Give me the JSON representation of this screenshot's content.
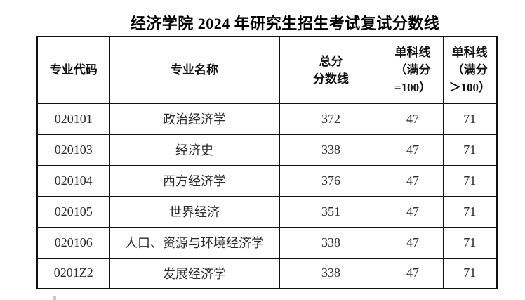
{
  "title": "经济学院 2024 年研究生招生考试复试分数线",
  "table": {
    "header": {
      "code": "专业代码",
      "name": "专业名称",
      "total": [
        "总分",
        "分数线"
      ],
      "single_eq": [
        "单科线",
        "（满分",
        "=100）"
      ],
      "single_gt": [
        "单科线",
        "（满分",
        "＞100）"
      ]
    },
    "rows": [
      {
        "code": "020101",
        "name": "政治经济学",
        "total": "372",
        "eq": "47",
        "gt": "71"
      },
      {
        "code": "020103",
        "name": "经济史",
        "total": "338",
        "eq": "47",
        "gt": "71"
      },
      {
        "code": "020104",
        "name": "西方经济学",
        "total": "376",
        "eq": "47",
        "gt": "71"
      },
      {
        "code": "020105",
        "name": "世界经济",
        "total": "351",
        "eq": "47",
        "gt": "71"
      },
      {
        "code": "020106",
        "name": "人口、资源与环境经济学",
        "total": "338",
        "eq": "47",
        "gt": "71"
      },
      {
        "code": "0201Z2",
        "name": "发展经济学",
        "total": "338",
        "eq": "47",
        "gt": "71"
      }
    ]
  },
  "colors": {
    "text": "#1f1f1f",
    "border": "#111111",
    "background": "#ffffff"
  }
}
